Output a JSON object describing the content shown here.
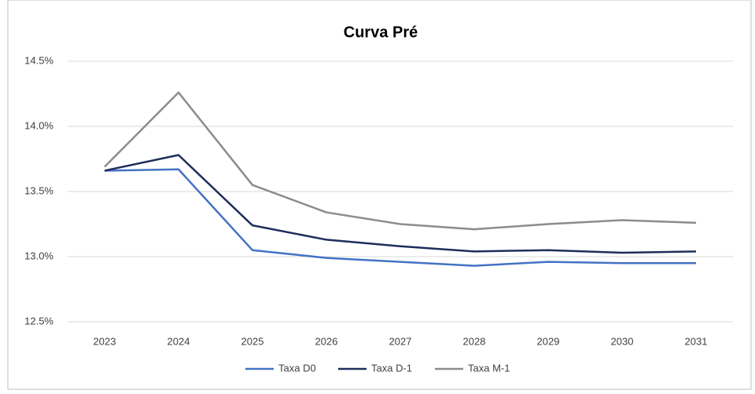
{
  "chart_data": {
    "type": "line",
    "title": "Curva Pré",
    "categories": [
      "2023",
      "2024",
      "2025",
      "2026",
      "2027",
      "2028",
      "2029",
      "2030",
      "2031"
    ],
    "series": [
      {
        "name": "Taxa D0",
        "color": "#4472c4",
        "values": [
          13.66,
          13.67,
          13.05,
          12.99,
          12.96,
          12.93,
          12.96,
          12.95,
          12.95
        ]
      },
      {
        "name": "Taxa D-1",
        "color": "#1f2d5c",
        "values": [
          13.66,
          13.78,
          13.24,
          13.13,
          13.08,
          13.04,
          13.05,
          13.03,
          13.04
        ]
      },
      {
        "name": "Taxa M-1",
        "color": "#8c8c8c",
        "values": [
          13.69,
          14.26,
          13.55,
          13.34,
          13.25,
          13.21,
          13.25,
          13.28,
          13.26
        ]
      }
    ],
    "ylim": [
      12.5,
      14.5
    ],
    "yticks": [
      {
        "value": 12.5,
        "label": "12.5%"
      },
      {
        "value": 13.0,
        "label": "13.0%"
      },
      {
        "value": 13.5,
        "label": "13.5%"
      },
      {
        "value": 14.0,
        "label": "14.0%"
      },
      {
        "value": 14.5,
        "label": "14.5%"
      }
    ],
    "grid": true,
    "legend": "bottom"
  }
}
